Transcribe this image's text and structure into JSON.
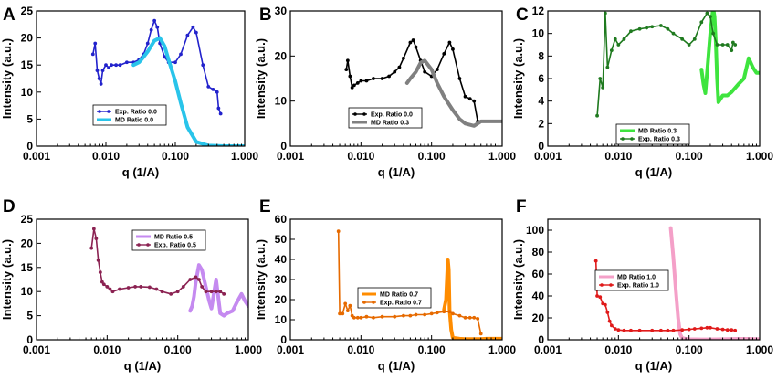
{
  "chart_data": [
    {
      "panel": "A",
      "type": "line",
      "xlabel": "q (1/A)",
      "ylabel": "Intensity (a.u.)",
      "xscale": "log",
      "xlim": [
        0.001,
        1.0
      ],
      "ylim": [
        0,
        25
      ],
      "xticks": [
        "0.001",
        "0.010",
        "0.100",
        "1.000"
      ],
      "yticks": [
        "0",
        "5",
        "10",
        "15",
        "20",
        "25"
      ],
      "legend_position": "lower-left",
      "series": [
        {
          "name": "Exp. Ratio 0.0",
          "color": "#2222cc",
          "style": "line-marker",
          "x": [
            0.0065,
            0.007,
            0.0075,
            0.008,
            0.0085,
            0.009,
            0.01,
            0.011,
            0.012,
            0.014,
            0.016,
            0.02,
            0.025,
            0.03,
            0.035,
            0.04,
            0.045,
            0.05,
            0.055,
            0.06,
            0.07,
            0.08,
            0.1,
            0.12,
            0.15,
            0.18,
            0.2,
            0.25,
            0.3,
            0.35,
            0.4,
            0.42,
            0.45
          ],
          "y": [
            17,
            19,
            14,
            12.5,
            11.5,
            14,
            15,
            14.5,
            15,
            15,
            15,
            15.5,
            15.5,
            16,
            17,
            19,
            21.5,
            23.2,
            22,
            19,
            16.5,
            15.5,
            15.5,
            17,
            20.5,
            22,
            21,
            15,
            11,
            10.5,
            10,
            7,
            6
          ]
        },
        {
          "name": "MD Ratio 0.0",
          "color": "#29c4ea",
          "style": "line",
          "x": [
            0.025,
            0.03,
            0.035,
            0.04,
            0.05,
            0.06,
            0.07,
            0.08,
            0.1,
            0.12,
            0.15,
            0.2,
            0.3,
            0.5,
            1.0
          ],
          "y": [
            15,
            15.5,
            16.5,
            17.5,
            19.5,
            20,
            18.5,
            16,
            12,
            8,
            3.5,
            0.8,
            0.1,
            0,
            0
          ]
        }
      ]
    },
    {
      "panel": "B",
      "type": "line",
      "xlabel": "q (1/A)",
      "ylabel": "Intensity (a.u.)",
      "xscale": "log",
      "xlim": [
        0.001,
        1.0
      ],
      "ylim": [
        0,
        30
      ],
      "xticks": [
        "0.001",
        "0.010",
        "0.100",
        "1.000"
      ],
      "yticks": [
        "0",
        "10",
        "20",
        "30"
      ],
      "legend_position": "lower-right",
      "series": [
        {
          "name": "Exp. Ratio 0.0",
          "color": "#000000",
          "style": "line-marker",
          "x": [
            0.0062,
            0.0065,
            0.007,
            0.0075,
            0.008,
            0.009,
            0.01,
            0.012,
            0.015,
            0.02,
            0.025,
            0.03,
            0.035,
            0.04,
            0.05,
            0.055,
            0.06,
            0.07,
            0.08,
            0.1,
            0.12,
            0.15,
            0.18,
            0.2,
            0.25,
            0.3,
            0.35,
            0.4,
            0.45
          ],
          "y": [
            17,
            19,
            15.5,
            13,
            13.5,
            14,
            14.5,
            14.5,
            15,
            15,
            15.5,
            16.5,
            17.5,
            19.5,
            23,
            23.5,
            22,
            19,
            16.5,
            15.5,
            17,
            20.5,
            23,
            21.5,
            15,
            11,
            10.5,
            10,
            5.5
          ]
        },
        {
          "name": "MD Ratio 0.3",
          "color": "#808080",
          "style": "line",
          "x": [
            0.045,
            0.05,
            0.06,
            0.07,
            0.08,
            0.1,
            0.12,
            0.15,
            0.2,
            0.25,
            0.3,
            0.4,
            0.5,
            0.7,
            1.0
          ],
          "y": [
            14,
            15,
            16.5,
            18.5,
            19,
            17,
            14,
            11,
            8,
            6,
            5,
            4.5,
            5.5,
            5.5,
            5.5
          ]
        }
      ]
    },
    {
      "panel": "C",
      "type": "line",
      "xlabel": "q (1/A)",
      "ylabel": "Intensity (a.u.)",
      "xscale": "log",
      "xlim": [
        0.001,
        1.0
      ],
      "ylim": [
        0,
        12
      ],
      "xticks": [
        "0.001",
        "0.010",
        "0.100",
        "1.000"
      ],
      "yticks": [
        "0",
        "2",
        "4",
        "6",
        "8",
        "10",
        "12"
      ],
      "legend_position": "lower-center",
      "series": [
        {
          "name": "MD Ratio 0.3",
          "color": "#3ee43e",
          "style": "line",
          "x": [
            0.15,
            0.16,
            0.17,
            0.18,
            0.2,
            0.22,
            0.23,
            0.24,
            0.25,
            0.26,
            0.28,
            0.3,
            0.35,
            0.4,
            0.5,
            0.6,
            0.7,
            0.8,
            0.9,
            1.0
          ],
          "y": [
            6.8,
            5.5,
            4.7,
            6.5,
            10,
            12.3,
            11.5,
            9,
            6,
            3.9,
            4.2,
            4.5,
            4.5,
            4.8,
            5.5,
            6,
            7.8,
            7,
            6.5,
            6.5
          ]
        },
        {
          "name": "Exp. Ratio 0.3",
          "color": "#1f7a1f",
          "style": "line-marker",
          "x": [
            0.005,
            0.0055,
            0.006,
            0.0065,
            0.007,
            0.008,
            0.009,
            0.01,
            0.012,
            0.015,
            0.02,
            0.025,
            0.03,
            0.04,
            0.05,
            0.06,
            0.08,
            0.1,
            0.12,
            0.15,
            0.18,
            0.2,
            0.22,
            0.25,
            0.3,
            0.35,
            0.4,
            0.42,
            0.45
          ],
          "y": [
            2.7,
            6,
            5.2,
            11.8,
            7,
            8.5,
            9.5,
            9,
            9.5,
            10.2,
            10.4,
            10.5,
            10.6,
            10.7,
            10.4,
            10,
            9.5,
            9,
            9.5,
            11,
            11.8,
            11.5,
            10,
            9,
            9,
            9,
            8.5,
            9.2,
            9
          ]
        }
      ]
    },
    {
      "panel": "D",
      "type": "line",
      "xlabel": "q (1/A)",
      "ylabel": "Intensity (a.u.)",
      "xscale": "log",
      "xlim": [
        0.001,
        1.0
      ],
      "ylim": [
        0,
        25
      ],
      "xticks": [
        "0.001",
        "0.010",
        "0.100",
        "1.000"
      ],
      "yticks": [
        "0",
        "5",
        "10",
        "15",
        "20",
        "25"
      ],
      "legend_position": "top-right",
      "series": [
        {
          "name": "MD Ratio 0.5",
          "color": "#c58af0",
          "style": "line",
          "x": [
            0.15,
            0.16,
            0.17,
            0.18,
            0.2,
            0.22,
            0.25,
            0.28,
            0.3,
            0.35,
            0.4,
            0.45,
            0.5,
            0.6,
            0.7,
            0.8,
            0.9,
            1.0
          ],
          "y": [
            6,
            7,
            9,
            12,
            15.5,
            14.5,
            11,
            8,
            6.5,
            12.5,
            5.5,
            5,
            5.5,
            6,
            8,
            9.5,
            8,
            7
          ]
        },
        {
          "name": "Exp. Ratio 0.5",
          "color": "#8b2252",
          "style": "line-marker",
          "x": [
            0.006,
            0.0065,
            0.007,
            0.0075,
            0.008,
            0.0085,
            0.009,
            0.01,
            0.011,
            0.012,
            0.015,
            0.02,
            0.025,
            0.03,
            0.04,
            0.05,
            0.06,
            0.08,
            0.1,
            0.12,
            0.15,
            0.18,
            0.2,
            0.22,
            0.25,
            0.3,
            0.35,
            0.4,
            0.45
          ],
          "y": [
            19,
            23,
            21,
            16.5,
            14,
            12,
            11.5,
            11,
            10.5,
            10,
            10.5,
            10.8,
            11,
            11,
            10.9,
            10.5,
            10,
            9.5,
            10,
            11,
            12.5,
            13,
            12.5,
            11,
            10,
            10,
            10,
            10,
            9.5
          ]
        }
      ]
    },
    {
      "panel": "E",
      "type": "line",
      "xlabel": "q (1/A)",
      "ylabel": "Intensity (a.u.)",
      "xscale": "log",
      "xlim": [
        0.001,
        1.0
      ],
      "ylim": [
        0,
        60
      ],
      "xticks": [
        "0.001",
        "0.010",
        "0.100",
        "1.000"
      ],
      "yticks": [
        "0",
        "10",
        "20",
        "30",
        "40",
        "50",
        "60"
      ],
      "legend_position": "center-right",
      "series": [
        {
          "name": "MD Ratio 0.7",
          "color": "#ff8c00",
          "style": "line",
          "x": [
            0.15,
            0.16,
            0.17,
            0.175,
            0.18,
            0.19,
            0.2,
            0.25,
            0.3,
            0.4,
            0.5,
            0.6,
            0.8,
            1.0
          ],
          "y": [
            15,
            20,
            40,
            35,
            15,
            5,
            1,
            0.5,
            0.3,
            0.3,
            0.3,
            0.5,
            0.5,
            0.5
          ]
        },
        {
          "name": "Exp. Ratio 0.7",
          "color": "#e66a00",
          "style": "line-marker",
          "x": [
            0.0048,
            0.005,
            0.0055,
            0.006,
            0.0065,
            0.007,
            0.0075,
            0.008,
            0.009,
            0.01,
            0.012,
            0.015,
            0.02,
            0.03,
            0.04,
            0.05,
            0.06,
            0.08,
            0.1,
            0.12,
            0.15,
            0.18,
            0.2,
            0.25,
            0.3,
            0.35,
            0.4,
            0.45,
            0.5
          ],
          "y": [
            54,
            13,
            13,
            18,
            14.5,
            17,
            12,
            11,
            11,
            11,
            11.5,
            11,
            11.5,
            11.5,
            12,
            12,
            12.5,
            12.5,
            13,
            13.5,
            14,
            14,
            13,
            12,
            11,
            11,
            11,
            10.5,
            3
          ]
        }
      ]
    },
    {
      "panel": "F",
      "type": "line",
      "xlabel": "q (1/A)",
      "ylabel": "Intensity (a.u.)",
      "xscale": "log",
      "xlim": [
        0.001,
        1.0
      ],
      "ylim": [
        0,
        110
      ],
      "xticks": [
        "0.001",
        "0.010",
        "0.100",
        "1.000"
      ],
      "yticks": [
        "0",
        "20",
        "40",
        "60",
        "80",
        "100"
      ],
      "legend_position": "top-left",
      "series": [
        {
          "name": "MD Ratio 1.0",
          "color": "#f4a0c8",
          "style": "line",
          "x": [
            0.055,
            0.06,
            0.065,
            0.07,
            0.075,
            0.08,
            0.09,
            0.1,
            0.15,
            0.2,
            0.3,
            0.5,
            0.7,
            1.0
          ],
          "y": [
            102,
            75,
            45,
            20,
            5,
            1.5,
            0.8,
            0.5,
            0.3,
            0.3,
            0.5,
            0.8,
            0.8,
            0.5
          ]
        },
        {
          "name": "Exp. Ratio 1.0",
          "color": "#e01a1a",
          "style": "line-marker",
          "x": [
            0.0048,
            0.005,
            0.0055,
            0.006,
            0.0065,
            0.007,
            0.0075,
            0.008,
            0.009,
            0.01,
            0.012,
            0.015,
            0.02,
            0.03,
            0.04,
            0.05,
            0.06,
            0.08,
            0.1,
            0.12,
            0.15,
            0.18,
            0.2,
            0.25,
            0.3,
            0.35,
            0.4,
            0.45
          ],
          "y": [
            72,
            40,
            39,
            33,
            32,
            25,
            17,
            13,
            10,
            9,
            8.5,
            8.5,
            8.5,
            8.5,
            8.5,
            8.5,
            8.5,
            9,
            9.5,
            10,
            10.5,
            11,
            11,
            10,
            9.5,
            9,
            9,
            8.5
          ]
        }
      ]
    }
  ]
}
